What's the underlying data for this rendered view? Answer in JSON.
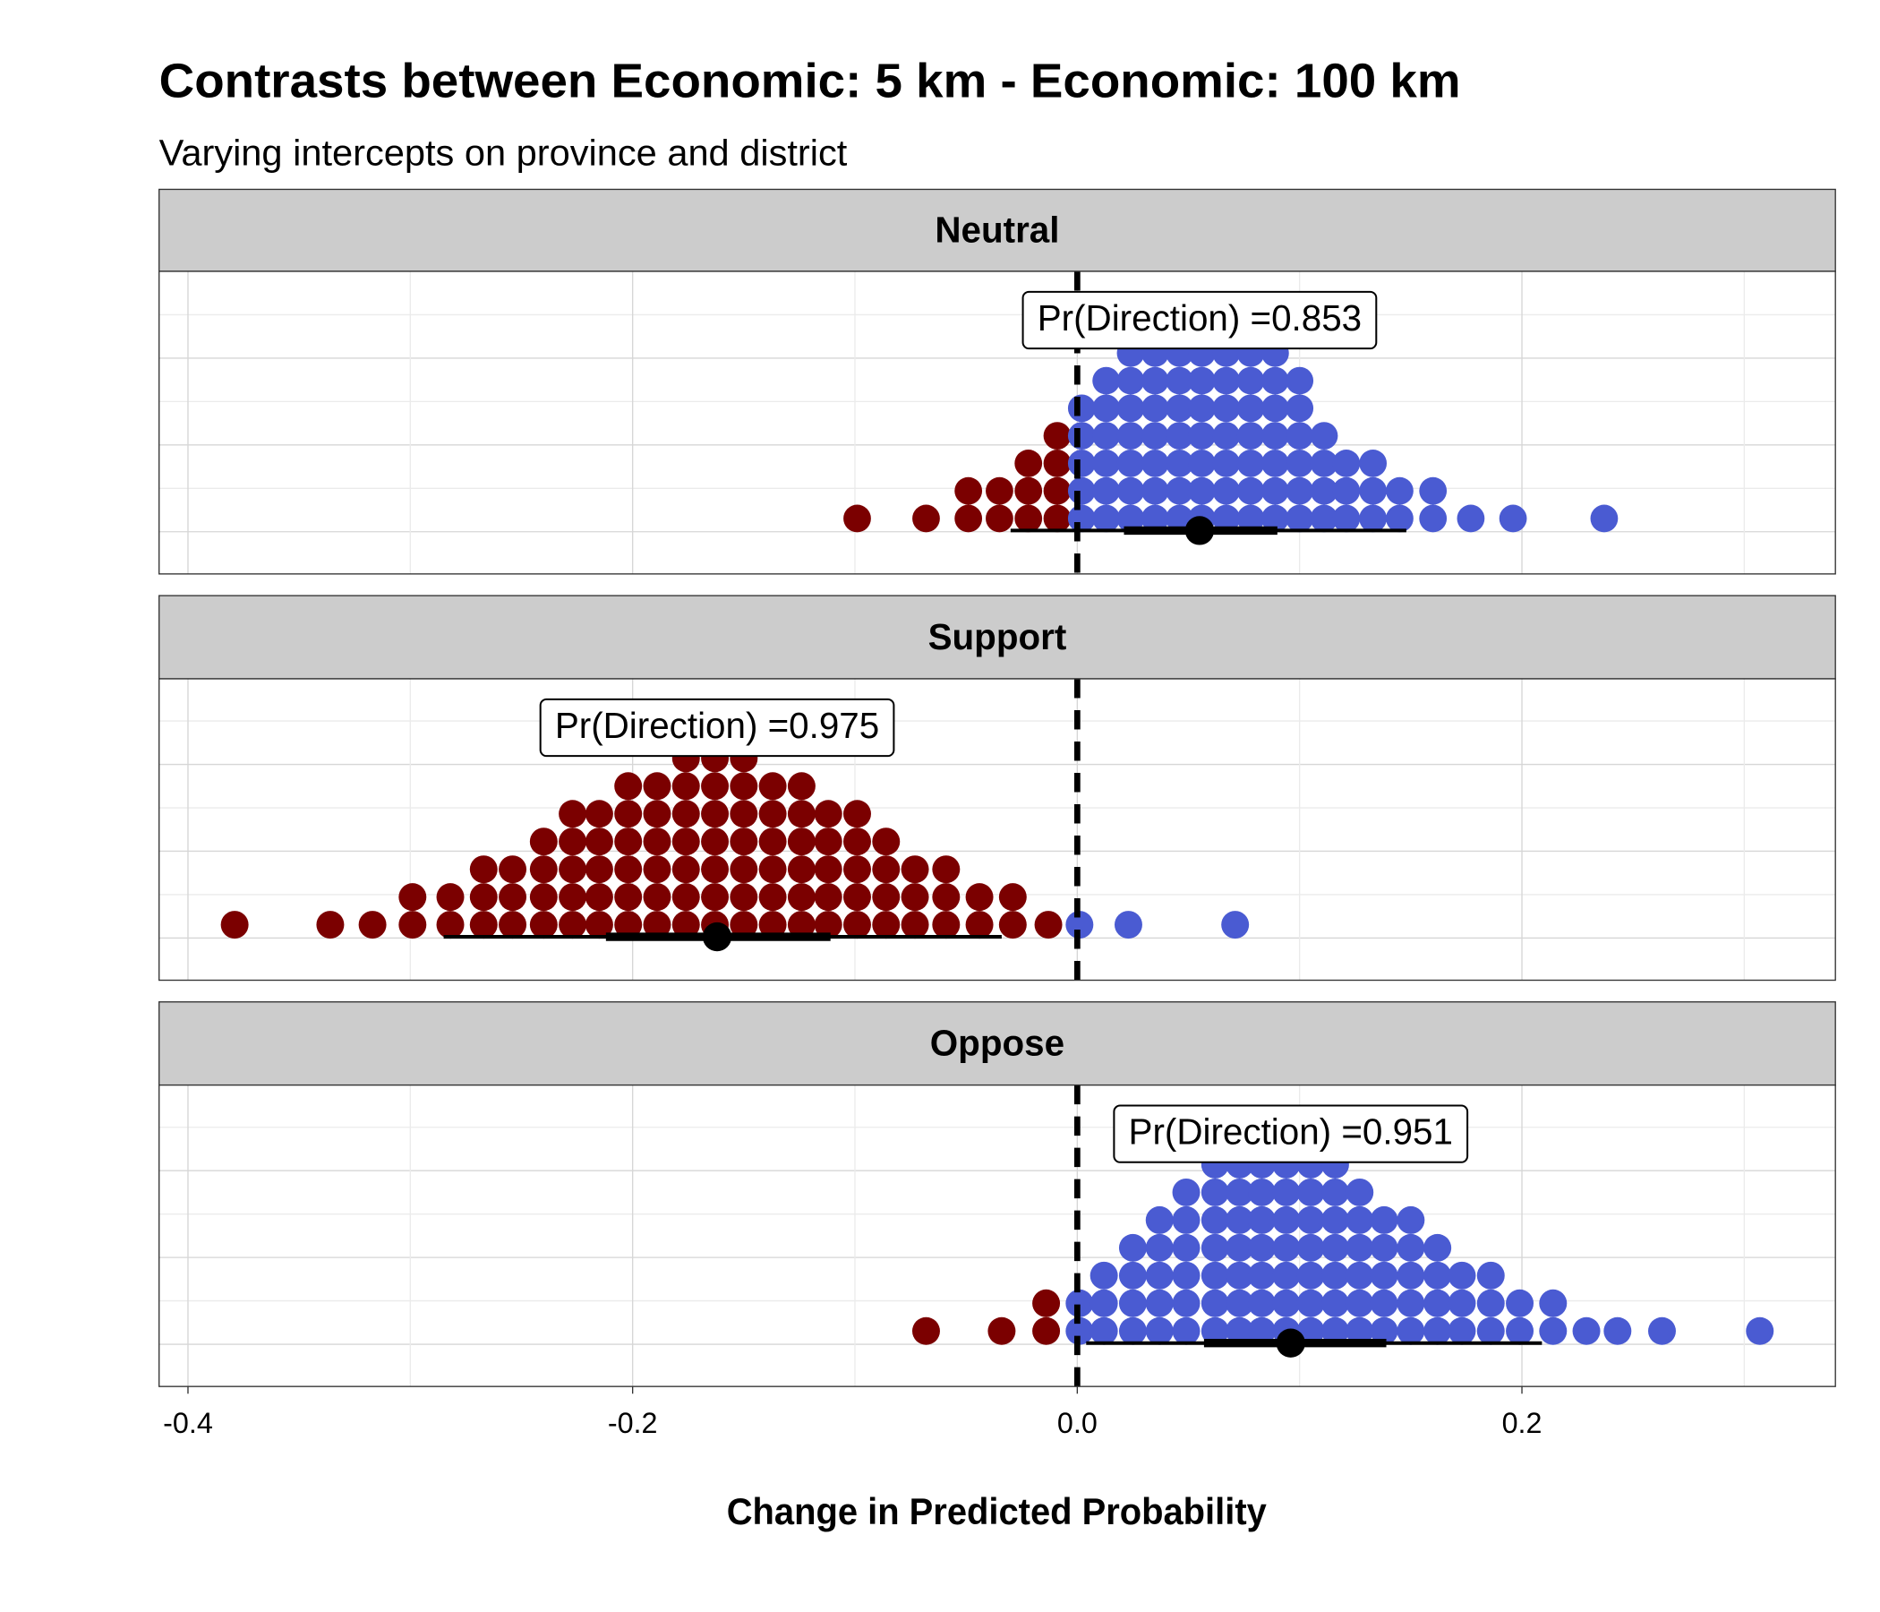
{
  "chart_data": {
    "type": "dotplot",
    "title": "Contrasts between Economic: 5 km - Economic: 100 km",
    "subtitle": "Varying intercepts on province and district",
    "x_label": "Change in Predicted Probability",
    "xlim": [
      -0.413,
      0.341
    ],
    "xticks": [
      -0.4,
      -0.2,
      {
        "value": 0,
        "label": "0.0"
      },
      0.2
    ],
    "vline": 0,
    "grid": true,
    "negative_color": "#7b0000",
    "positive_color": "#4a5bd2",
    "panels": [
      {
        "label": "Neutral",
        "annotation": "Pr(Direction) =0.853",
        "x": [
          -0.099,
          -0.068,
          -0.049,
          -0.035,
          -0.022,
          -0.009,
          0.002,
          0.013,
          0.024,
          0.035,
          0.046,
          0.056,
          0.067,
          0.078,
          0.089,
          0.1,
          0.111,
          0.121,
          0.133,
          0.145,
          0.16,
          0.177,
          0.196,
          0.237
        ],
        "counts": [
          1,
          1,
          2,
          2,
          3,
          4,
          5,
          6,
          7,
          8,
          8,
          8,
          8,
          7,
          7,
          6,
          4,
          3,
          3,
          2,
          2,
          1,
          1,
          1
        ],
        "median": 0.055,
        "inner_interval": [
          0.021,
          0.09
        ],
        "outer_interval": [
          -0.03,
          0.148
        ]
      },
      {
        "label": "Support",
        "annotation": "Pr(Direction) =0.975",
        "x": [
          -0.379,
          -0.336,
          -0.317,
          -0.299,
          -0.282,
          -0.267,
          -0.254,
          -0.24,
          -0.227,
          -0.215,
          -0.202,
          -0.189,
          -0.176,
          -0.163,
          -0.15,
          -0.137,
          -0.124,
          -0.112,
          -0.099,
          -0.086,
          -0.073,
          -0.059,
          -0.044,
          -0.029,
          -0.013,
          0.001,
          0.023,
          0.071
        ],
        "counts": [
          1,
          1,
          1,
          2,
          2,
          3,
          3,
          4,
          5,
          5,
          6,
          6,
          7,
          7,
          7,
          6,
          6,
          5,
          5,
          4,
          3,
          3,
          2,
          2,
          1,
          1,
          1,
          1
        ],
        "median": -0.162,
        "inner_interval": [
          -0.212,
          -0.111
        ],
        "outer_interval": [
          -0.285,
          -0.034
        ]
      },
      {
        "label": "Oppose",
        "annotation": "Pr(Direction) =0.951",
        "x": [
          -0.068,
          -0.034,
          -0.014,
          0.001,
          0.012,
          0.025,
          0.037,
          0.049,
          0.062,
          0.073,
          0.083,
          0.094,
          0.105,
          0.116,
          0.127,
          0.138,
          0.15,
          0.162,
          0.173,
          0.186,
          0.199,
          0.214,
          0.229,
          0.243,
          0.263,
          0.307
        ],
        "counts": [
          1,
          1,
          2,
          2,
          3,
          4,
          5,
          6,
          7,
          7,
          7,
          7,
          7,
          7,
          6,
          5,
          5,
          4,
          3,
          3,
          2,
          2,
          1,
          1,
          1,
          1
        ],
        "median": 0.096,
        "inner_interval": [
          0.057,
          0.139
        ],
        "outer_interval": [
          0.004,
          0.209
        ]
      }
    ]
  }
}
